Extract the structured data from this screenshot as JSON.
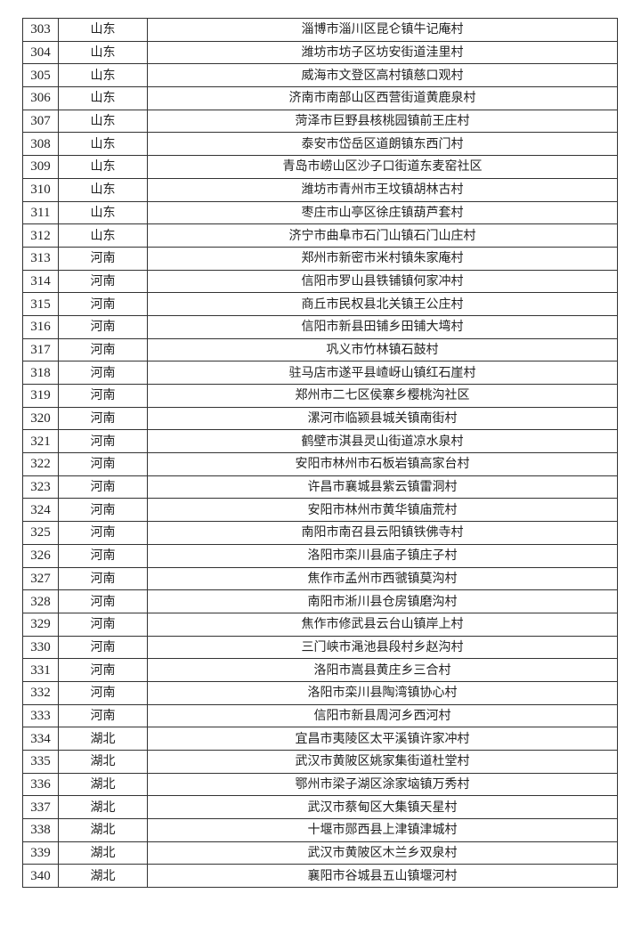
{
  "table": {
    "rows": [
      [
        "303",
        "山东",
        "淄博市淄川区昆仑镇牛记庵村"
      ],
      [
        "304",
        "山东",
        "潍坊市坊子区坊安街道洼里村"
      ],
      [
        "305",
        "山东",
        "威海市文登区高村镇慈口观村"
      ],
      [
        "306",
        "山东",
        "济南市南部山区西营街道黄鹿泉村"
      ],
      [
        "307",
        "山东",
        "菏泽市巨野县核桃园镇前王庄村"
      ],
      [
        "308",
        "山东",
        "泰安市岱岳区道朗镇东西门村"
      ],
      [
        "309",
        "山东",
        "青岛市崂山区沙子口街道东麦窑社区"
      ],
      [
        "310",
        "山东",
        "潍坊市青州市王坟镇胡林古村"
      ],
      [
        "311",
        "山东",
        "枣庄市山亭区徐庄镇葫芦套村"
      ],
      [
        "312",
        "山东",
        "济宁市曲阜市石门山镇石门山庄村"
      ],
      [
        "313",
        "河南",
        "郑州市新密市米村镇朱家庵村"
      ],
      [
        "314",
        "河南",
        "信阳市罗山县铁铺镇何家冲村"
      ],
      [
        "315",
        "河南",
        "商丘市民权县北关镇王公庄村"
      ],
      [
        "316",
        "河南",
        "信阳市新县田铺乡田铺大塆村"
      ],
      [
        "317",
        "河南",
        "巩义市竹林镇石鼓村"
      ],
      [
        "318",
        "河南",
        "驻马店市遂平县嵖岈山镇红石崖村"
      ],
      [
        "319",
        "河南",
        "郑州市二七区侯寨乡樱桃沟社区"
      ],
      [
        "320",
        "河南",
        "漯河市临颍县城关镇南街村"
      ],
      [
        "321",
        "河南",
        "鹤壁市淇县灵山街道凉水泉村"
      ],
      [
        "322",
        "河南",
        "安阳市林州市石板岩镇高家台村"
      ],
      [
        "323",
        "河南",
        "许昌市襄城县紫云镇雷洞村"
      ],
      [
        "324",
        "河南",
        "安阳市林州市黄华镇庙荒村"
      ],
      [
        "325",
        "河南",
        "南阳市南召县云阳镇铁佛寺村"
      ],
      [
        "326",
        "河南",
        "洛阳市栾川县庙子镇庄子村"
      ],
      [
        "327",
        "河南",
        "焦作市孟州市西虢镇莫沟村"
      ],
      [
        "328",
        "河南",
        "南阳市淅川县仓房镇磨沟村"
      ],
      [
        "329",
        "河南",
        "焦作市修武县云台山镇岸上村"
      ],
      [
        "330",
        "河南",
        "三门峡市渑池县段村乡赵沟村"
      ],
      [
        "331",
        "河南",
        "洛阳市嵩县黄庄乡三合村"
      ],
      [
        "332",
        "河南",
        "洛阳市栾川县陶湾镇协心村"
      ],
      [
        "333",
        "河南",
        "信阳市新县周河乡西河村"
      ],
      [
        "334",
        "湖北",
        "宜昌市夷陵区太平溪镇许家冲村"
      ],
      [
        "335",
        "湖北",
        "武汉市黄陂区姚家集街道杜堂村"
      ],
      [
        "336",
        "湖北",
        "鄂州市梁子湖区涂家垴镇万秀村"
      ],
      [
        "337",
        "湖北",
        "武汉市蔡甸区大集镇天星村"
      ],
      [
        "338",
        "湖北",
        "十堰市郧西县上津镇津城村"
      ],
      [
        "339",
        "湖北",
        "武汉市黄陂区木兰乡双泉村"
      ],
      [
        "340",
        "湖北",
        "襄阳市谷城县五山镇堰河村"
      ]
    ]
  }
}
